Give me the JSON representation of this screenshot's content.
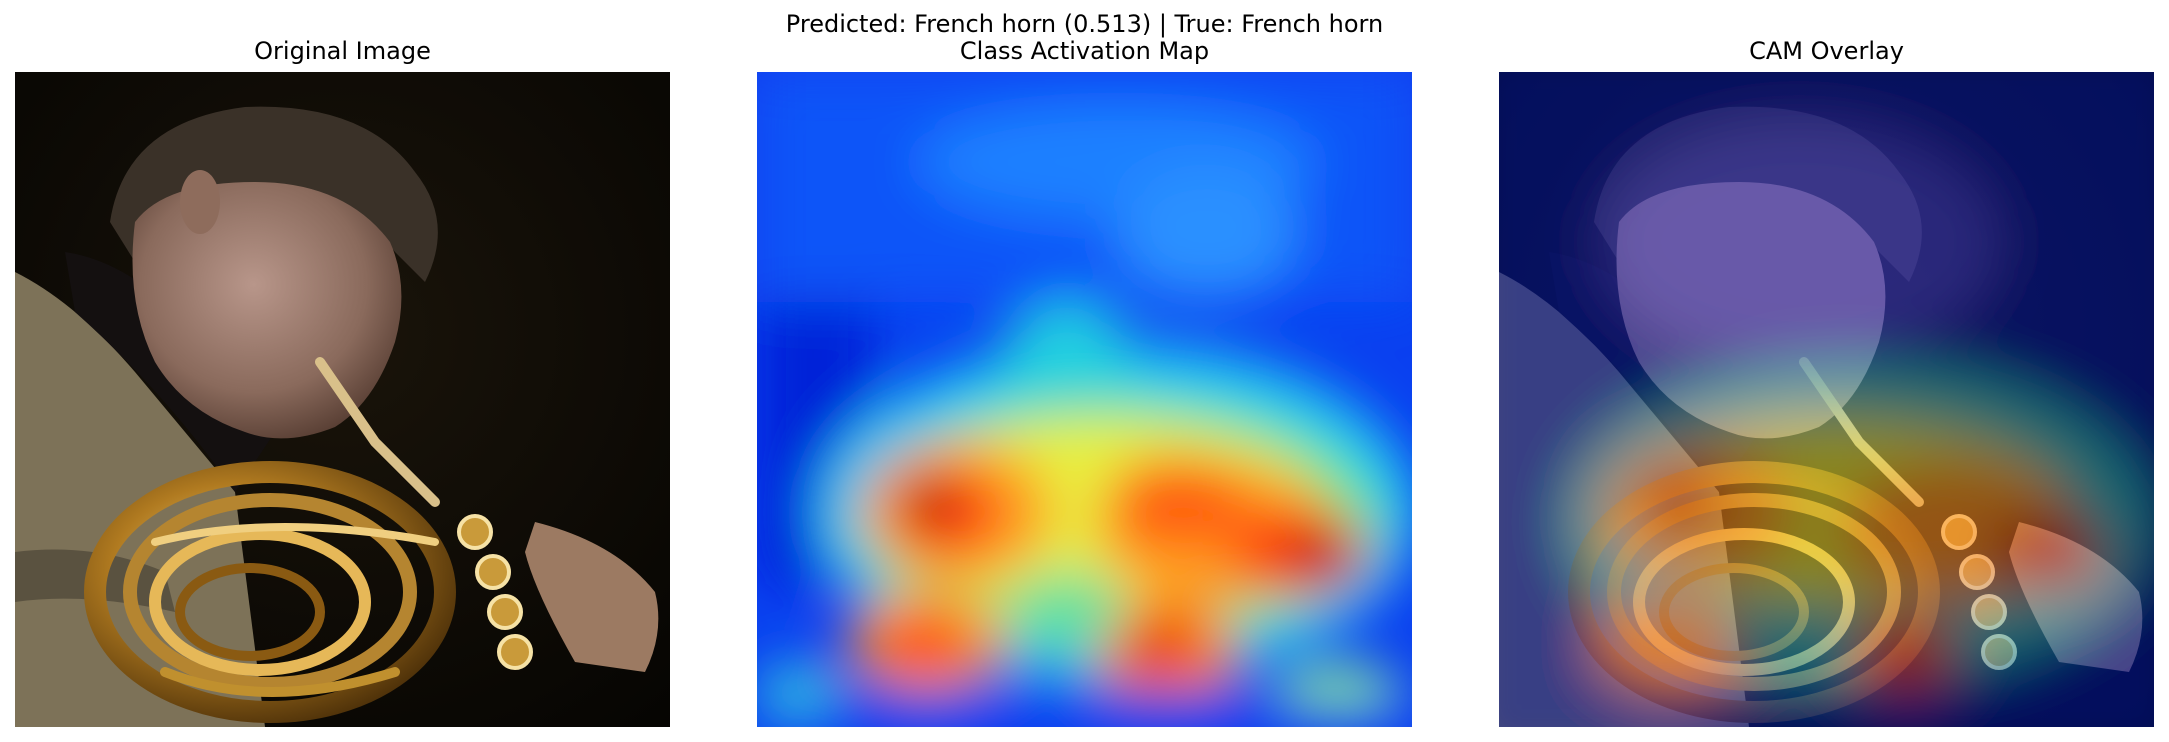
{
  "figure": {
    "suptitle": "Predicted: French horn (0.513) | True: French horn",
    "panels": [
      {
        "title": "Original Image"
      },
      {
        "title": "Class Activation Map"
      },
      {
        "title": "CAM Overlay"
      }
    ]
  },
  "colors": {
    "background": "#ffffff",
    "photo_background": "#0d0a05",
    "brass": "#c8952c",
    "cam_low": "#0a30e8",
    "cam_high": "#a00000"
  }
}
